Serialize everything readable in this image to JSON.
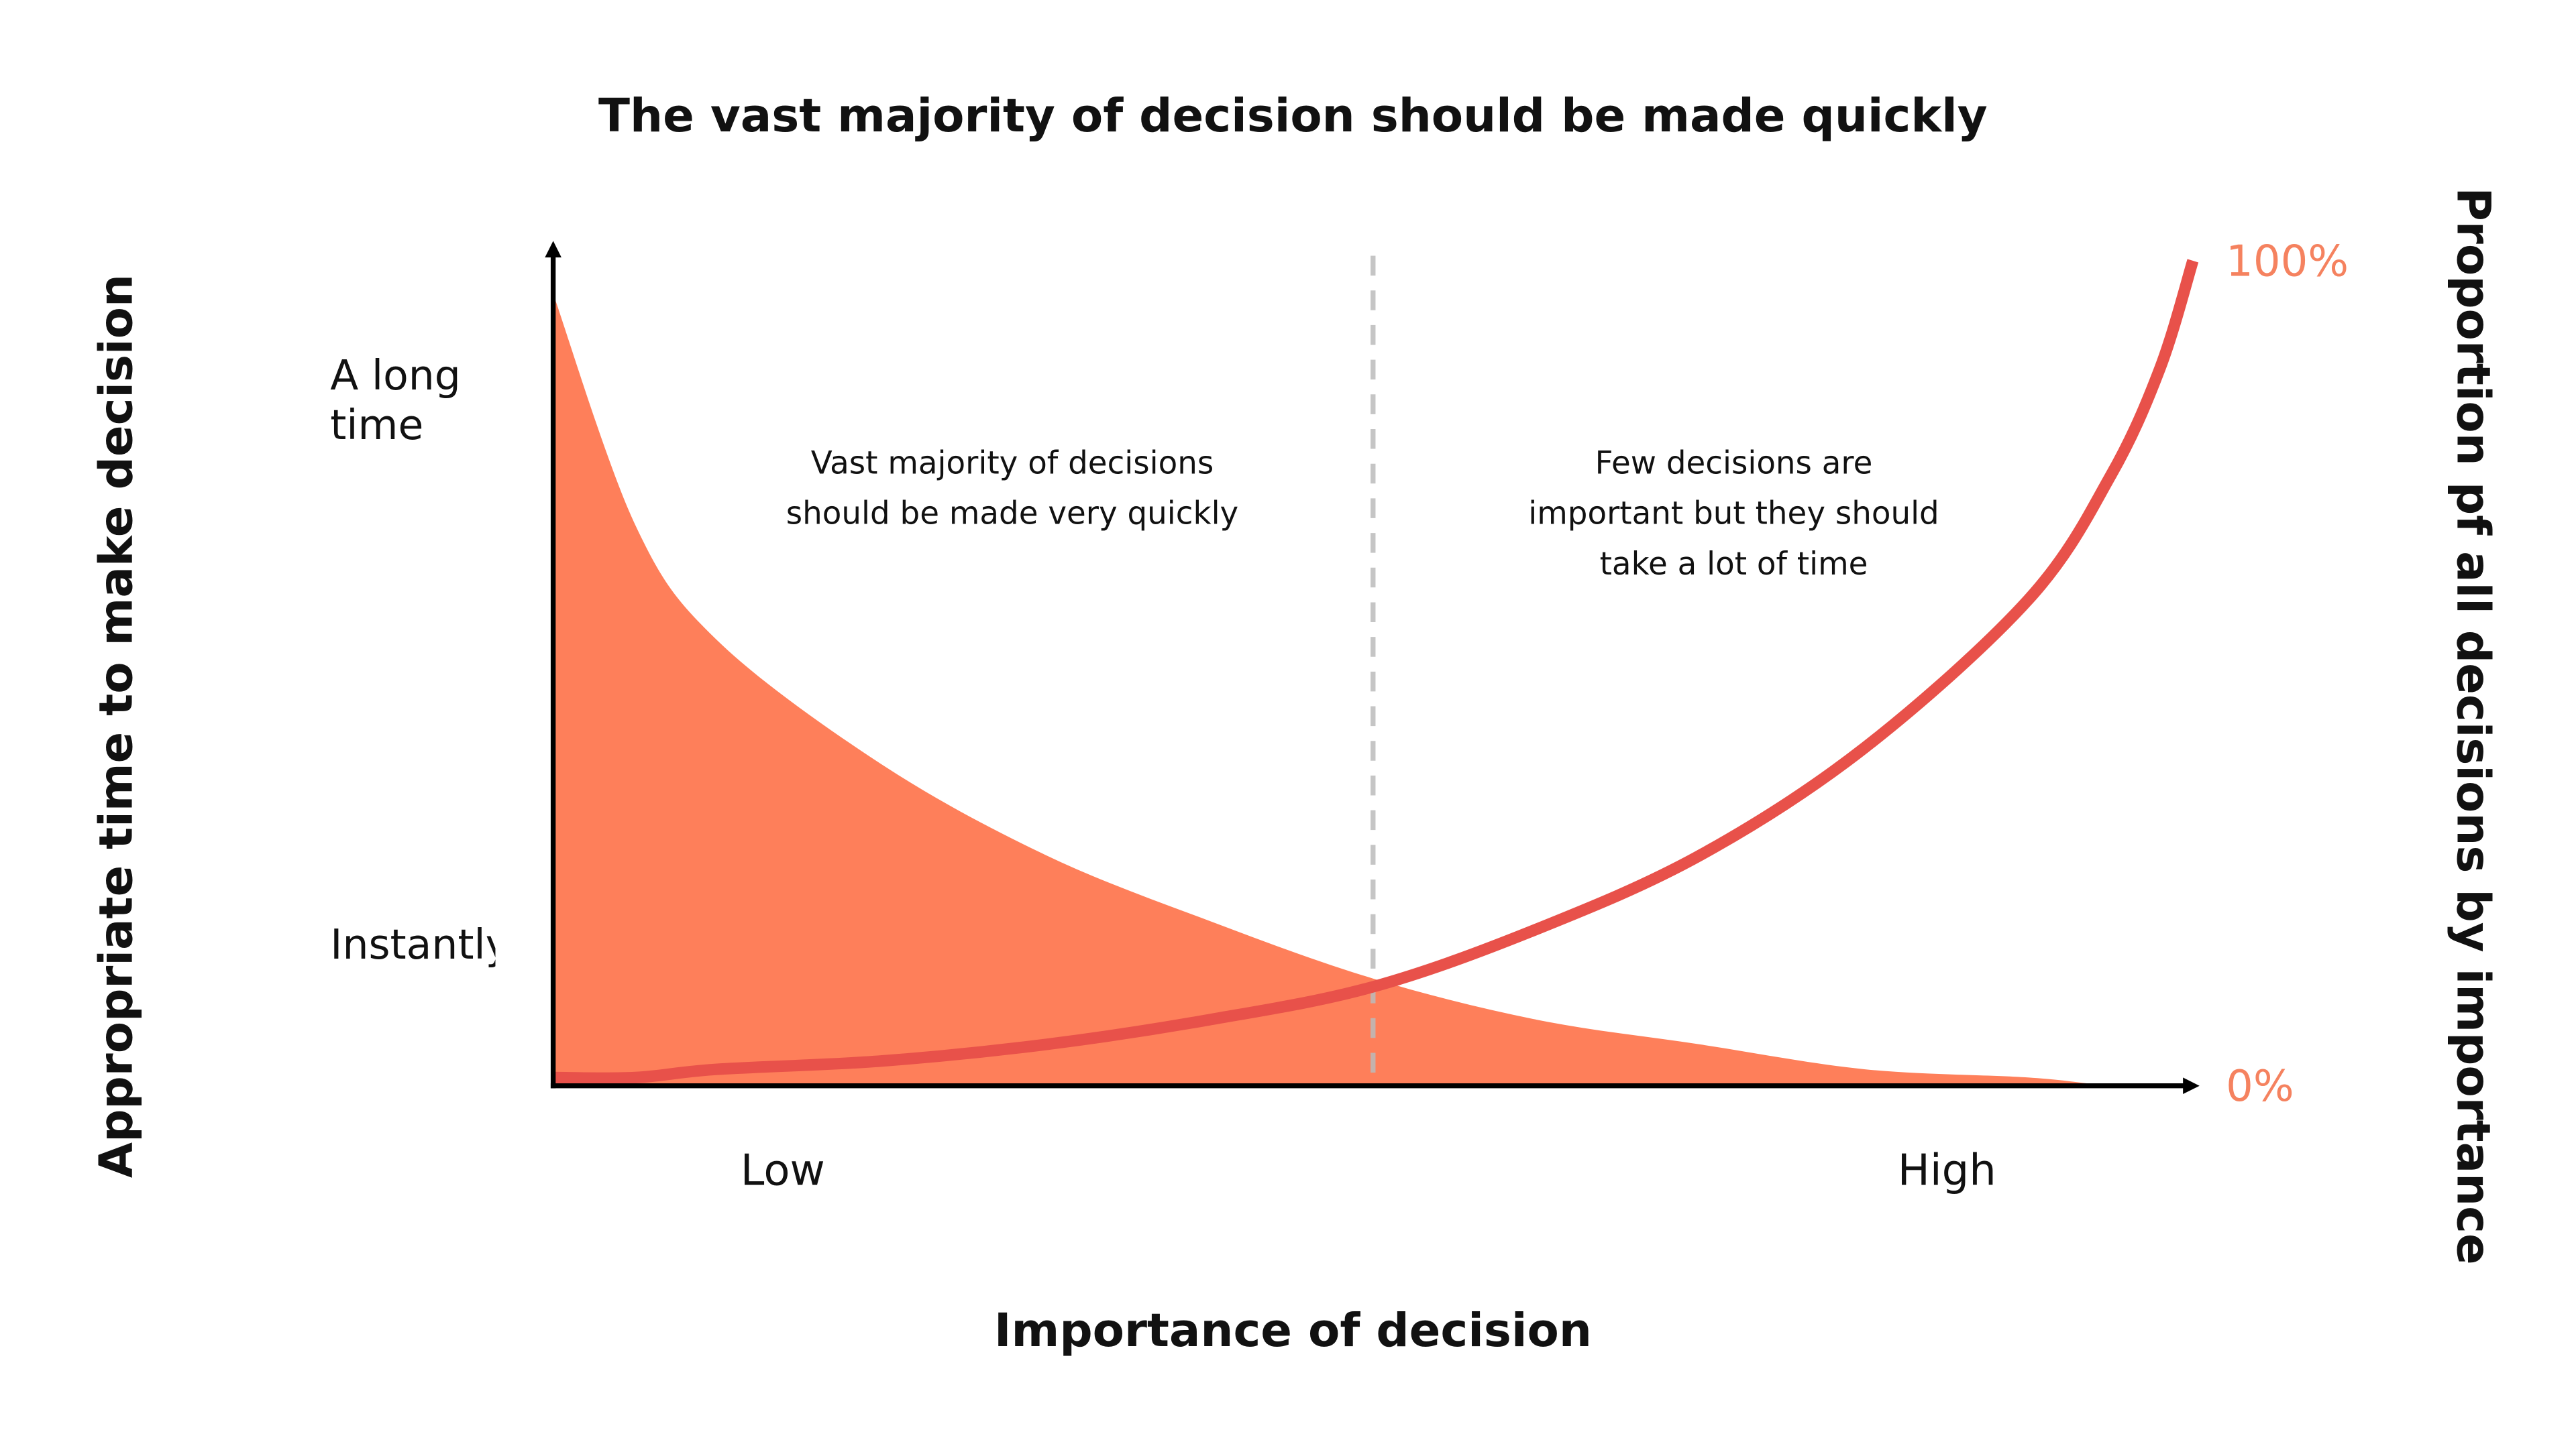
{
  "chart_data": {
    "type": "area_line",
    "title": "The vast majority of decision should be made quickly",
    "x_label": "Importance of decision",
    "y_label": "Appropriate time to make decision",
    "y2_label": "Proportion pf all decisions by importance",
    "x": [
      0,
      5,
      10,
      20,
      30,
      40,
      50,
      60,
      70,
      80,
      90,
      95,
      98,
      100
    ],
    "xlim": [
      0,
      100
    ],
    "xticks": [
      {
        "value": 14,
        "label": "Low"
      },
      {
        "value": 85,
        "label": "High"
      }
    ],
    "ylim": [
      0,
      100
    ],
    "yticks": [
      {
        "value": 83,
        "label": "A long time"
      },
      {
        "value": 17,
        "label": "Instantly"
      }
    ],
    "y2lim": [
      0,
      100
    ],
    "y2ticks": [
      {
        "value": 0,
        "label": "0%"
      },
      {
        "value": 100,
        "label": "100%"
      }
    ],
    "y2tick_color": "#f5825f",
    "vline_x": 50,
    "series": [
      {
        "kind": "area",
        "color": "#fe7f5a",
        "values": [
          96,
          68,
          54,
          39,
          28,
          20,
          13,
          8,
          5,
          2,
          1,
          0,
          0,
          0
        ]
      },
      {
        "kind": "line",
        "axis": "y2",
        "color": "#e8514a",
        "values": [
          1,
          1,
          2,
          3,
          5,
          8,
          12,
          19,
          28,
          41,
          59,
          74,
          87,
          100
        ]
      }
    ],
    "annotations": [
      {
        "x": 28,
        "lines": [
          "Vast majority of decisions",
          "should be made very quickly"
        ]
      },
      {
        "x": 72,
        "lines": [
          "Few decisions are",
          "important but they should",
          "take a lot of time"
        ]
      }
    ]
  }
}
